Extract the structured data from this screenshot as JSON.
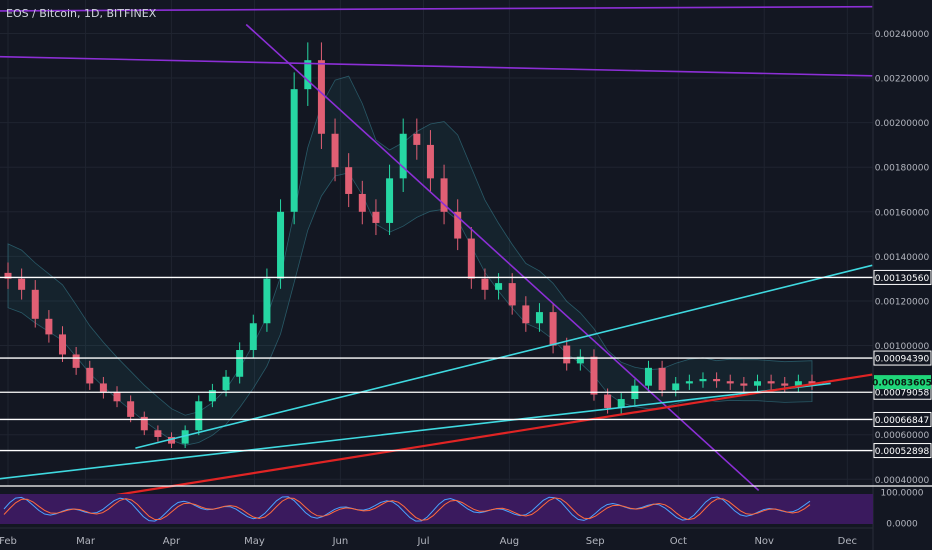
{
  "header": {
    "symbol_title": "EOS / Bitcoin, 1D, BITFINEX"
  },
  "colors": {
    "background": "#131722",
    "grid": "#1f2430",
    "candle_up": "#26d7a3",
    "candle_down": "#e05f74",
    "purple_line": "#8c2fd6",
    "cyan_line": "#3fd9e0",
    "red_line": "#e02424",
    "white_level": "#ffffff",
    "current_price_bg": "#1fd67a",
    "oscillator_bg": "#3a1a5e",
    "oscillator_k": "#4aa3ff",
    "oscillator_d": "#ff6a3d"
  },
  "chart_data": {
    "type": "candlestick",
    "ylim": [
      0.00037,
      0.00255
    ],
    "x_axis_labels": [
      "Feb",
      "Mar",
      "Apr",
      "May",
      "Jun",
      "Jul",
      "Aug",
      "Sep",
      "Oct",
      "Nov",
      "Dec"
    ],
    "y_axis_ticks": [
      "0.00240000",
      "0.00220000",
      "0.00200000",
      "0.00180000",
      "0.00160000",
      "0.00140000",
      "0.00120000",
      "0.00100000",
      "0.00060000",
      "0.00040000"
    ],
    "price_levels": [
      {
        "label": "0.00130560",
        "value": 0.0013056
      },
      {
        "label": "0.00094390",
        "value": 0.0009439
      },
      {
        "label": "0.00079058",
        "value": 0.00079058
      },
      {
        "label": "0.00066847",
        "value": 0.00066847
      },
      {
        "label": "0.00052898",
        "value": 0.00052898
      }
    ],
    "current_price": {
      "label": "0.00083605",
      "value": 0.00083605
    },
    "close_series": [
      0.0013,
      0.00125,
      0.00112,
      0.00105,
      0.00096,
      0.0009,
      0.00083,
      0.00079,
      0.00075,
      0.00068,
      0.00062,
      0.00059,
      0.00056,
      0.00062,
      0.00075,
      0.0008,
      0.00086,
      0.00098,
      0.0011,
      0.0013,
      0.0016,
      0.00215,
      0.00228,
      0.00195,
      0.0018,
      0.00168,
      0.0016,
      0.00155,
      0.00175,
      0.00195,
      0.0019,
      0.00175,
      0.0016,
      0.00148,
      0.0013,
      0.00125,
      0.00128,
      0.00118,
      0.0011,
      0.00115,
      0.001,
      0.00092,
      0.00095,
      0.00078,
      0.00072,
      0.00076,
      0.00082,
      0.0009,
      0.0008,
      0.00083,
      0.00084,
      0.00085,
      0.00084,
      0.00083,
      0.00082,
      0.00084,
      0.00083,
      0.00082,
      0.00084,
      0.00083
    ],
    "trendlines": [
      {
        "name": "upper-resistance",
        "color": "purple",
        "from": [
          "2018-01-13",
          0.0025
        ],
        "to": [
          "2018-12-10",
          0.00252
        ]
      },
      {
        "name": "mid-resistance",
        "color": "purple",
        "from": [
          "2018-01-13",
          0.0023
        ],
        "to": [
          "2018-12-10",
          0.00221
        ]
      },
      {
        "name": "down-trend",
        "color": "purple",
        "from": [
          "2018-04-28",
          0.00244
        ],
        "to": [
          "2018-10-30",
          0.00035
        ]
      },
      {
        "name": "support-cyan-upper",
        "color": "cyan",
        "from": [
          "2018-03-19",
          0.00054
        ],
        "to": [
          "2018-12-10",
          0.00136
        ]
      },
      {
        "name": "support-cyan-lower",
        "color": "cyan",
        "from": [
          "2018-01-13",
          0.00038
        ],
        "to": [
          "2018-11-25",
          0.00083
        ]
      },
      {
        "name": "support-red",
        "color": "red",
        "from": [
          "2018-02-15",
          0.00028
        ],
        "to": [
          "2018-12-10",
          0.00087
        ]
      }
    ],
    "oscillator": {
      "scale_labels": [
        "100.0000",
        "0.0000"
      ],
      "ylim": [
        0,
        100
      ]
    }
  }
}
